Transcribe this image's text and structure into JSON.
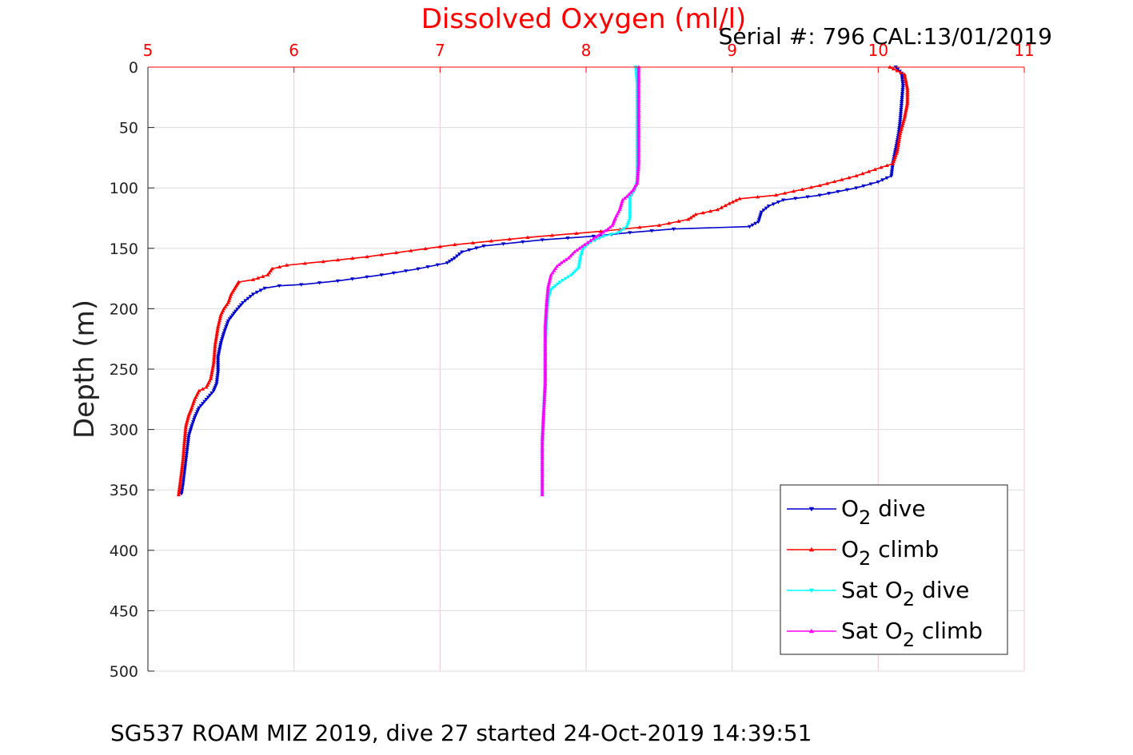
{
  "chart_data": {
    "type": "line",
    "title": "Dissolved Oxygen (ml/l)",
    "serial_label": "Serial #: 796  CAL:13/01/2019",
    "footer": "SG537 ROAM MIZ 2019, dive 27 started 24-Oct-2019 14:39:51",
    "ylabel": "Depth (m)",
    "xlim": [
      5,
      11
    ],
    "ylim": [
      0,
      500
    ],
    "y_reversed": true,
    "x_axis_position": "top",
    "x_ticks": [
      "5",
      "6",
      "7",
      "8",
      "9",
      "10",
      "11"
    ],
    "y_ticks": [
      "0",
      "50",
      "100",
      "150",
      "200",
      "250",
      "300",
      "350",
      "400",
      "450",
      "500"
    ],
    "grid": true,
    "legend_position": "bottom-right",
    "colors": {
      "axis_ticks_x": "#ff0000",
      "title": "#ff0000",
      "grid": "#f2c9cf"
    },
    "series": [
      {
        "name": "O2 dive",
        "legend_main": "O",
        "legend_sub": "2",
        "legend_tail": " dive",
        "color": "#0000cc",
        "marker": "triangle-down",
        "points": [
          [
            10.12,
            0
          ],
          [
            10.16,
            5
          ],
          [
            10.17,
            15
          ],
          [
            10.16,
            30
          ],
          [
            10.15,
            45
          ],
          [
            10.14,
            55
          ],
          [
            10.12,
            68
          ],
          [
            10.1,
            80
          ],
          [
            10.09,
            90
          ],
          [
            10.0,
            95
          ],
          [
            9.85,
            100
          ],
          [
            9.6,
            106
          ],
          [
            9.35,
            110
          ],
          [
            9.25,
            115
          ],
          [
            9.2,
            120
          ],
          [
            9.18,
            128
          ],
          [
            9.12,
            132
          ],
          [
            8.6,
            134
          ],
          [
            8.3,
            137
          ],
          [
            8.05,
            140
          ],
          [
            7.7,
            143
          ],
          [
            7.3,
            148
          ],
          [
            7.15,
            153
          ],
          [
            7.1,
            158
          ],
          [
            7.05,
            162
          ],
          [
            6.85,
            167
          ],
          [
            6.6,
            172
          ],
          [
            6.3,
            177
          ],
          [
            6.05,
            180
          ],
          [
            5.9,
            181
          ],
          [
            5.8,
            183
          ],
          [
            5.72,
            188
          ],
          [
            5.65,
            195
          ],
          [
            5.6,
            202
          ],
          [
            5.55,
            210
          ],
          [
            5.52,
            220
          ],
          [
            5.5,
            228
          ],
          [
            5.48,
            240
          ],
          [
            5.48,
            252
          ],
          [
            5.47,
            262
          ],
          [
            5.45,
            268
          ],
          [
            5.4,
            275
          ],
          [
            5.35,
            282
          ],
          [
            5.32,
            290
          ],
          [
            5.3,
            297
          ],
          [
            5.28,
            305
          ],
          [
            5.27,
            315
          ],
          [
            5.26,
            325
          ],
          [
            5.25,
            335
          ],
          [
            5.24,
            345
          ],
          [
            5.23,
            353
          ]
        ]
      },
      {
        "name": "O2 climb",
        "legend_main": "O",
        "legend_sub": "2",
        "legend_tail": " climb",
        "color": "#ff0000",
        "marker": "triangle-up",
        "points": [
          [
            10.08,
            0
          ],
          [
            10.18,
            6
          ],
          [
            10.2,
            18
          ],
          [
            10.2,
            30
          ],
          [
            10.18,
            42
          ],
          [
            10.15,
            55
          ],
          [
            10.13,
            70
          ],
          [
            10.1,
            80
          ],
          [
            10.02,
            83
          ],
          [
            9.85,
            90
          ],
          [
            9.6,
            98
          ],
          [
            9.3,
            106
          ],
          [
            9.05,
            109
          ],
          [
            8.98,
            113
          ],
          [
            8.9,
            118
          ],
          [
            8.75,
            122
          ],
          [
            8.7,
            126
          ],
          [
            8.5,
            131
          ],
          [
            8.1,
            136
          ],
          [
            7.6,
            141
          ],
          [
            7.1,
            147
          ],
          [
            6.8,
            152
          ],
          [
            6.5,
            157
          ],
          [
            6.2,
            161
          ],
          [
            5.95,
            164
          ],
          [
            5.85,
            167
          ],
          [
            5.82,
            172
          ],
          [
            5.72,
            176
          ],
          [
            5.62,
            178
          ],
          [
            5.6,
            182
          ],
          [
            5.57,
            188
          ],
          [
            5.55,
            195
          ],
          [
            5.52,
            200
          ],
          [
            5.5,
            205
          ],
          [
            5.48,
            215
          ],
          [
            5.46,
            230
          ],
          [
            5.45,
            245
          ],
          [
            5.43,
            258
          ],
          [
            5.4,
            265
          ],
          [
            5.35,
            268
          ],
          [
            5.32,
            275
          ],
          [
            5.3,
            282
          ],
          [
            5.28,
            288
          ],
          [
            5.26,
            297
          ],
          [
            5.25,
            310
          ],
          [
            5.24,
            325
          ],
          [
            5.23,
            335
          ],
          [
            5.22,
            345
          ],
          [
            5.21,
            354
          ]
        ]
      },
      {
        "name": "Sat O2 dive",
        "legend_main": "Sat O",
        "legend_sub": "2",
        "legend_tail": " dive",
        "color": "#00ffff",
        "marker": "triangle-down",
        "points": [
          [
            8.34,
            0
          ],
          [
            8.35,
            15
          ],
          [
            8.35,
            40
          ],
          [
            8.35,
            70
          ],
          [
            8.35,
            95
          ],
          [
            8.33,
            102
          ],
          [
            8.3,
            108
          ],
          [
            8.3,
            115
          ],
          [
            8.3,
            125
          ],
          [
            8.28,
            132
          ],
          [
            8.22,
            137
          ],
          [
            8.12,
            140
          ],
          [
            8.03,
            145
          ],
          [
            7.98,
            150
          ],
          [
            7.96,
            158
          ],
          [
            7.95,
            166
          ],
          [
            7.9,
            172
          ],
          [
            7.82,
            178
          ],
          [
            7.76,
            184
          ],
          [
            7.74,
            192
          ],
          [
            7.73,
            205
          ],
          [
            7.72,
            230
          ],
          [
            7.72,
            260
          ],
          [
            7.71,
            285
          ],
          [
            7.7,
            310
          ],
          [
            7.7,
            335
          ],
          [
            7.7,
            354
          ]
        ]
      },
      {
        "name": "Sat O2 climb",
        "legend_main": "Sat O",
        "legend_sub": "2",
        "legend_tail": " climb",
        "color": "#ff00ff",
        "marker": "triangle-up",
        "points": [
          [
            8.36,
            0
          ],
          [
            8.36,
            20
          ],
          [
            8.36,
            50
          ],
          [
            8.36,
            80
          ],
          [
            8.35,
            96
          ],
          [
            8.32,
            102
          ],
          [
            8.28,
            107
          ],
          [
            8.25,
            110
          ],
          [
            8.23,
            118
          ],
          [
            8.2,
            125
          ],
          [
            8.18,
            131
          ],
          [
            8.15,
            134
          ],
          [
            8.1,
            138
          ],
          [
            8.05,
            142
          ],
          [
            7.99,
            147
          ],
          [
            7.92,
            153
          ],
          [
            7.88,
            158
          ],
          [
            7.83,
            162
          ],
          [
            7.8,
            165
          ],
          [
            7.76,
            172
          ],
          [
            7.74,
            182
          ],
          [
            7.73,
            195
          ],
          [
            7.72,
            215
          ],
          [
            7.72,
            240
          ],
          [
            7.72,
            262
          ],
          [
            7.71,
            285
          ],
          [
            7.7,
            310
          ],
          [
            7.7,
            335
          ],
          [
            7.7,
            354
          ]
        ]
      }
    ]
  }
}
